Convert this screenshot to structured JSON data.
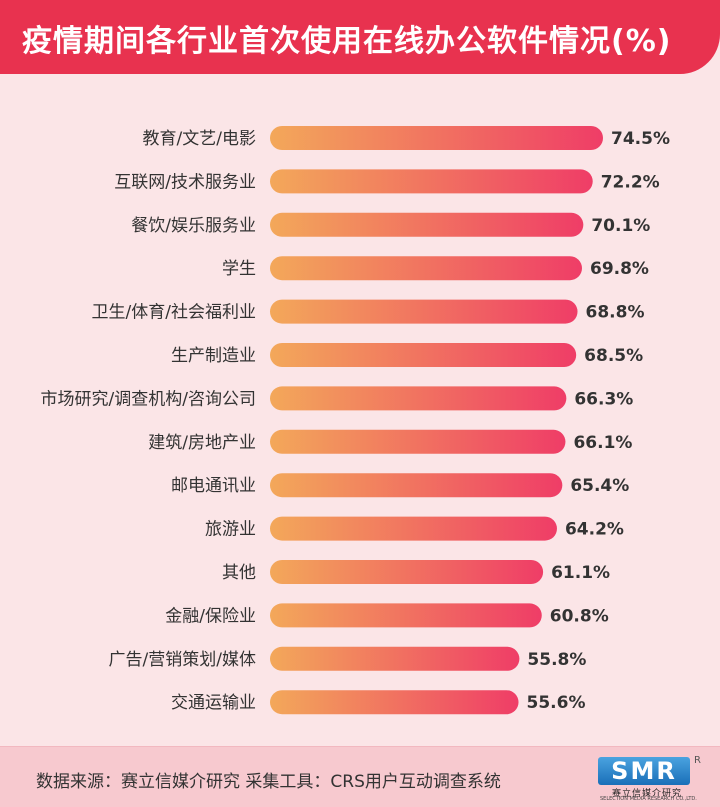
{
  "header": {
    "title": "疫情期间各行业首次使用在线办公软件情况(%)"
  },
  "colors": {
    "header_bg": "#e8324f",
    "bar_start": "#f3a85a",
    "bar_end": "#ef3d67",
    "background": "#fbe5e7"
  },
  "chart_data": {
    "type": "bar",
    "orientation": "horizontal",
    "title": "疫情期间各行业首次使用在线办公软件情况(%)",
    "categories": [
      "教育/文艺/电影",
      "互联网/技术服务业",
      "餐饮/娱乐服务业",
      "学生",
      "卫生/体育/社会福利业",
      "生产制造业",
      "市场研究/调查机构/咨询公司",
      "建筑/房地产业",
      "邮电通讯业",
      "旅游业",
      "其他",
      "金融/保险业",
      "广告/营销策划/媒体",
      "交通运输业"
    ],
    "values": [
      74.5,
      72.2,
      70.1,
      69.8,
      68.8,
      68.5,
      66.3,
      66.1,
      65.4,
      64.2,
      61.1,
      60.8,
      55.8,
      55.6
    ],
    "value_labels": [
      "74.5%",
      "72.2%",
      "70.1%",
      "69.8%",
      "68.8%",
      "68.5%",
      "66.3%",
      "66.1%",
      "65.4%",
      "64.2%",
      "61.1%",
      "60.8%",
      "55.8%",
      "55.6%"
    ],
    "unit": "%",
    "grid": false
  },
  "footer": {
    "source": "数据来源：赛立信媒介研究  采集工具：CRS用户互动调查系统",
    "logo_text": "SMR",
    "logo_cn": "赛立信媒介研究",
    "logo_en": "SELECTION MEDIA RESEARCH CO.,LTD.",
    "logo_reg": "R"
  }
}
